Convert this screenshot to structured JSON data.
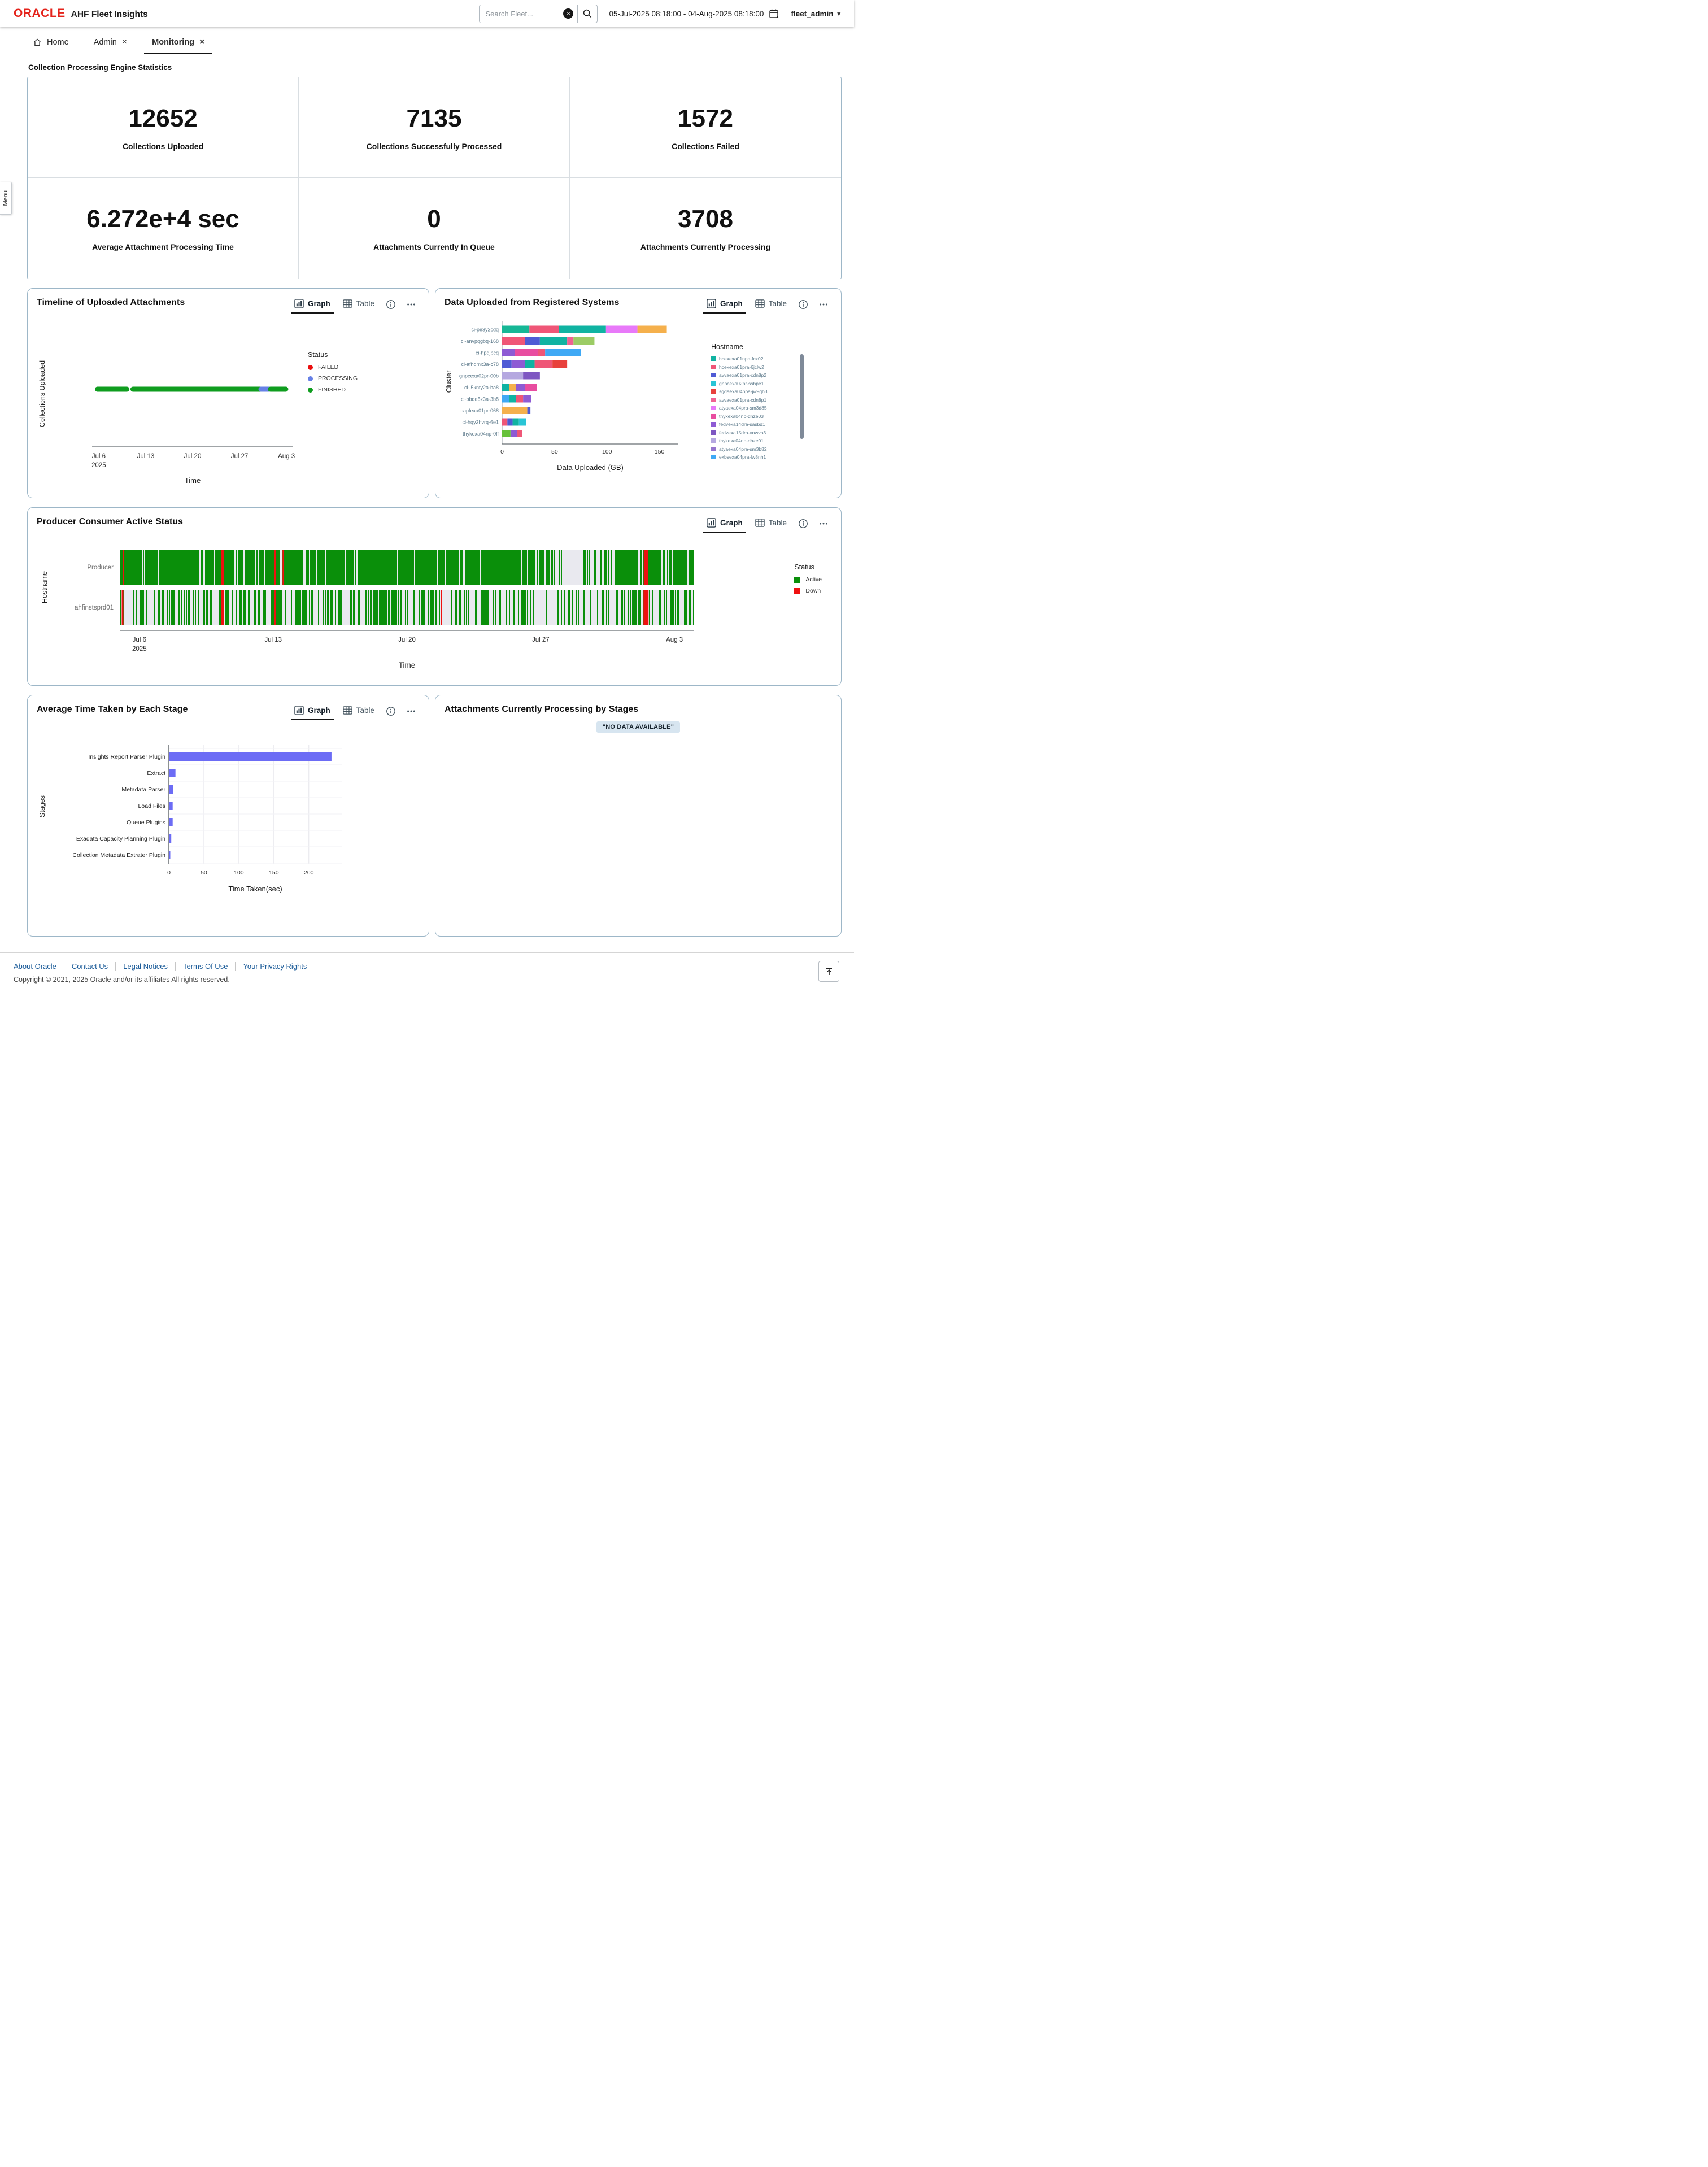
{
  "header": {
    "brand": "ORACLE",
    "app_title": "AHF Fleet Insights",
    "search_placeholder": "Search Fleet...",
    "date_range": "05-Jul-2025 08:18:00 - 04-Aug-2025 08:18:00",
    "user": "fleet_admin"
  },
  "icons": {
    "close": "×",
    "caret": "▾",
    "clear": "×"
  },
  "tabs": {
    "home": "Home",
    "admin": "Admin",
    "monitoring": "Monitoring"
  },
  "menu_tab": "Menu",
  "stats": {
    "section_title": "Collection Processing Engine Statistics",
    "cards": [
      {
        "value": "12652",
        "label": "Collections Uploaded"
      },
      {
        "value": "7135",
        "label": "Collections Successfully Processed"
      },
      {
        "value": "1572",
        "label": "Collections Failed"
      },
      {
        "value": "6.272e+4 sec",
        "label": "Average Attachment Processing Time"
      },
      {
        "value": "0",
        "label": "Attachments Currently In Queue"
      },
      {
        "value": "3708",
        "label": "Attachments Currently Processing"
      }
    ]
  },
  "controls": {
    "graph": "Graph",
    "table": "Table"
  },
  "panels": {
    "timeline": {
      "title": "Timeline of Uploaded Attachments"
    },
    "data_uploaded": {
      "title": "Data Uploaded from Registered Systems"
    },
    "producer_consumer": {
      "title": "Producer Consumer Active Status"
    },
    "avg_stage": {
      "title": "Average Time Taken by Each Stage"
    },
    "attachments": {
      "title": "Attachments Currently Processing by Stages",
      "no_data": "\"NO DATA AVAILABLE\""
    }
  },
  "chart_data": [
    {
      "id": "timeline_attachments",
      "type": "scatter",
      "title": "Timeline of Uploaded Attachments",
      "xlabel": "Time",
      "ylabel": "Collections Uploaded",
      "x_domain_days": [
        0,
        30
      ],
      "x_ticks": [
        {
          "d": 1,
          "label": "Jul 6",
          "sub": "2025"
        },
        {
          "d": 8,
          "label": "Jul 13"
        },
        {
          "d": 15,
          "label": "Jul 20"
        },
        {
          "d": 22,
          "label": "Jul 27"
        },
        {
          "d": 29,
          "label": "Aug 3"
        }
      ],
      "legend": {
        "title": "Status",
        "items": [
          {
            "label": "FAILED",
            "color": "#ea0e0e"
          },
          {
            "label": "PROCESSING",
            "color": "#6680e6"
          },
          {
            "label": "FINISHED",
            "color": "#0f9d1f"
          }
        ]
      },
      "segments": [
        {
          "status": "FINISHED",
          "color": "#0f9d1f",
          "x0": 0.8,
          "x1": 5.2
        },
        {
          "status": "FINISHED",
          "color": "#0f9d1f",
          "x0": 6.1,
          "x1": 25.1
        },
        {
          "status": "PROCESSING",
          "color": "#6680e6",
          "x0": 25.2,
          "x1": 26.4
        },
        {
          "status": "FINISHED",
          "color": "#0f9d1f",
          "x0": 26.6,
          "x1": 28.9
        }
      ]
    },
    {
      "id": "data_uploaded",
      "type": "stacked_bar_h",
      "xlabel": "Data Uploaded (GB)",
      "ylabel": "Cluster",
      "x_ticks": [
        0,
        50,
        100,
        150
      ],
      "xmax": 168,
      "legend_title": "Hostname",
      "legend_items": [
        {
          "label": "hcexexa01npa-fcx02",
          "color": "#10b3a2"
        },
        {
          "label": "hcexexa01pra-6jclw2",
          "color": "#ef5677"
        },
        {
          "label": "avvaexa01pra-cdn8p2",
          "color": "#4f5bd5"
        },
        {
          "label": "gnpcexa02pr-sshpe1",
          "color": "#29c5d6"
        },
        {
          "label": "sgdaexa04npa-jw9qh3",
          "color": "#e8413c"
        },
        {
          "label": "avvaexa01pra-cdn8p1",
          "color": "#f06292"
        },
        {
          "label": "atyaexa04pra-sm3d85",
          "color": "#e879f9"
        },
        {
          "label": "thykexa04np-dhze03",
          "color": "#e84da0"
        },
        {
          "label": "fedvexa14dra-sasbd1",
          "color": "#8e5bd4"
        },
        {
          "label": "fedvexa15dra-vnwva3",
          "color": "#7e57c2"
        },
        {
          "label": "thykexa04np-dhze01",
          "color": "#b5a8e0"
        },
        {
          "label": "atyaexa04pra-sm3b82",
          "color": "#9575cd"
        },
        {
          "label": "exbsexa04pra-lw8nh1",
          "color": "#3fa9f5"
        }
      ],
      "rows": [
        {
          "cluster": "ci-pe3y2cdq",
          "segments": [
            [
              "#16b796",
              26
            ],
            [
              "#ef5677",
              28
            ],
            [
              "#10b3a2",
              45
            ],
            [
              "#e879f9",
              30
            ],
            [
              "#f5b04c",
              28
            ]
          ]
        },
        {
          "cluster": "ci-anvpqgbq-168",
          "segments": [
            [
              "#ef5677",
              22
            ],
            [
              "#4f5bd5",
              14
            ],
            [
              "#10b3a2",
              26
            ],
            [
              "#f06292",
              6
            ],
            [
              "#9ccc65",
              20
            ]
          ]
        },
        {
          "cluster": "ci-hpqjbcq",
          "segments": [
            [
              "#8e5bd4",
              12
            ],
            [
              "#e84da0",
              22
            ],
            [
              "#ef5677",
              7
            ],
            [
              "#3fa9f5",
              34
            ]
          ]
        },
        {
          "cluster": "ci-afhqmx3a-c78",
          "segments": [
            [
              "#4f5bd5",
              9
            ],
            [
              "#8e5bd4",
              13
            ],
            [
              "#10b3a2",
              9
            ],
            [
              "#ef5677",
              17
            ],
            [
              "#e8413c",
              14
            ]
          ]
        },
        {
          "cluster": "gnpcexa02pr-00b",
          "segments": [
            [
              "#b5a8e0",
              20
            ],
            [
              "#7e57c2",
              16
            ]
          ]
        },
        {
          "cluster": "ci-l5knty2a-ba8",
          "segments": [
            [
              "#10b3a2",
              7
            ],
            [
              "#f5b04c",
              6
            ],
            [
              "#8e5bd4",
              9
            ],
            [
              "#e84da0",
              11
            ]
          ]
        },
        {
          "cluster": "ci-bbde5z3a-3b8",
          "segments": [
            [
              "#3fa9f5",
              7
            ],
            [
              "#10b3a2",
              6
            ],
            [
              "#ef5677",
              7
            ],
            [
              "#8e5bd4",
              8
            ]
          ]
        },
        {
          "cluster": "capfexa01pr-068",
          "segments": [
            [
              "#f5b04c",
              24
            ],
            [
              "#4f5bd5",
              3
            ]
          ]
        },
        {
          "cluster": "ci-hqy3hvrq-6e1",
          "segments": [
            [
              "#ef5677",
              5
            ],
            [
              "#4f5bd5",
              5
            ],
            [
              "#10b3a2",
              6
            ],
            [
              "#29c5d6",
              7
            ]
          ]
        },
        {
          "cluster": "thykexa04np-0ff",
          "segments": [
            [
              "#67c23a",
              8
            ],
            [
              "#8e5bd4",
              6
            ],
            [
              "#ef5677",
              5
            ]
          ]
        }
      ]
    },
    {
      "id": "producer_consumer_status",
      "type": "status_timeline",
      "xlabel": "Time",
      "ylabel": "Hostname",
      "x_domain_days": [
        0,
        30
      ],
      "x_ticks": [
        {
          "d": 1,
          "label": "Jul 6",
          "sub": "2025"
        },
        {
          "d": 8,
          "label": "Jul 13"
        },
        {
          "d": 15,
          "label": "Jul 20"
        },
        {
          "d": 22,
          "label": "Jul 27"
        },
        {
          "d": 29,
          "label": "Aug 3"
        }
      ],
      "legend": {
        "title": "Status",
        "items": [
          {
            "label": "Active",
            "color": "#0a8f0a"
          },
          {
            "label": "Down",
            "color": "#ef1010"
          }
        ]
      },
      "colors": {
        "active": "#0a8f0a",
        "down": "#ef1010",
        "idle": "#e9e9ef"
      },
      "seed": 7,
      "rows": [
        {
          "label": "Producer",
          "zones": [
            [
              0,
              0.05,
              0.85
            ],
            [
              0.05,
              0.23,
              0.95
            ],
            [
              0.23,
              0.33,
              0.82
            ],
            [
              0.33,
              0.52,
              0.96
            ],
            [
              0.52,
              0.62,
              0.85
            ],
            [
              0.62,
              0.72,
              0.9
            ],
            [
              0.72,
              0.76,
              0.55
            ],
            [
              0.76,
              0.86,
              0.3
            ],
            [
              0.86,
              1,
              0.82
            ]
          ],
          "red": [
            [
              0.005,
              2
            ],
            [
              0.178,
              5
            ],
            [
              0.27,
              3
            ],
            [
              0.284,
              2
            ],
            [
              0.917,
              8
            ]
          ]
        },
        {
          "label": "ahfinstsprd01",
          "zones": [
            [
              0,
              0.02,
              0.25
            ],
            [
              0.02,
              0.1,
              0.55
            ],
            [
              0.1,
              0.2,
              0.4
            ],
            [
              0.2,
              0.3,
              0.62
            ],
            [
              0.3,
              0.42,
              0.45
            ],
            [
              0.42,
              0.55,
              0.58
            ],
            [
              0.55,
              0.62,
              0.35
            ],
            [
              0.62,
              0.72,
              0.5
            ],
            [
              0.72,
              0.86,
              0.27
            ],
            [
              0.86,
              1,
              0.55
            ]
          ],
          "red": [
            [
              0.004,
              3
            ],
            [
              0.178,
              5
            ],
            [
              0.27,
              3
            ],
            [
              0.56,
              2
            ],
            [
              0.917,
              9
            ]
          ]
        }
      ]
    },
    {
      "id": "avg_time_by_stage",
      "type": "bar_h",
      "xlabel": "Time Taken(sec)",
      "ylabel": "Stages",
      "categories": [
        "Insights Report Parser Plugin",
        "Extract",
        "Metadata Parser",
        "Load Files",
        "Queue Plugins",
        "Exadata Capacity Planning Plugin",
        "Collection Metadata Extrater Plugin"
      ],
      "values": [
        232,
        9,
        6,
        5,
        5,
        3,
        1.5
      ],
      "x_ticks": [
        0,
        50,
        100,
        150,
        200
      ],
      "xmax": 247,
      "bar_color": "#6c6cf5"
    }
  ],
  "footer": {
    "links": [
      "About Oracle",
      "Contact Us",
      "Legal Notices",
      "Terms Of Use",
      "Your Privacy Rights"
    ],
    "copyright": "Copyright © 2021, 2025 Oracle and/or its affiliates All rights reserved."
  }
}
